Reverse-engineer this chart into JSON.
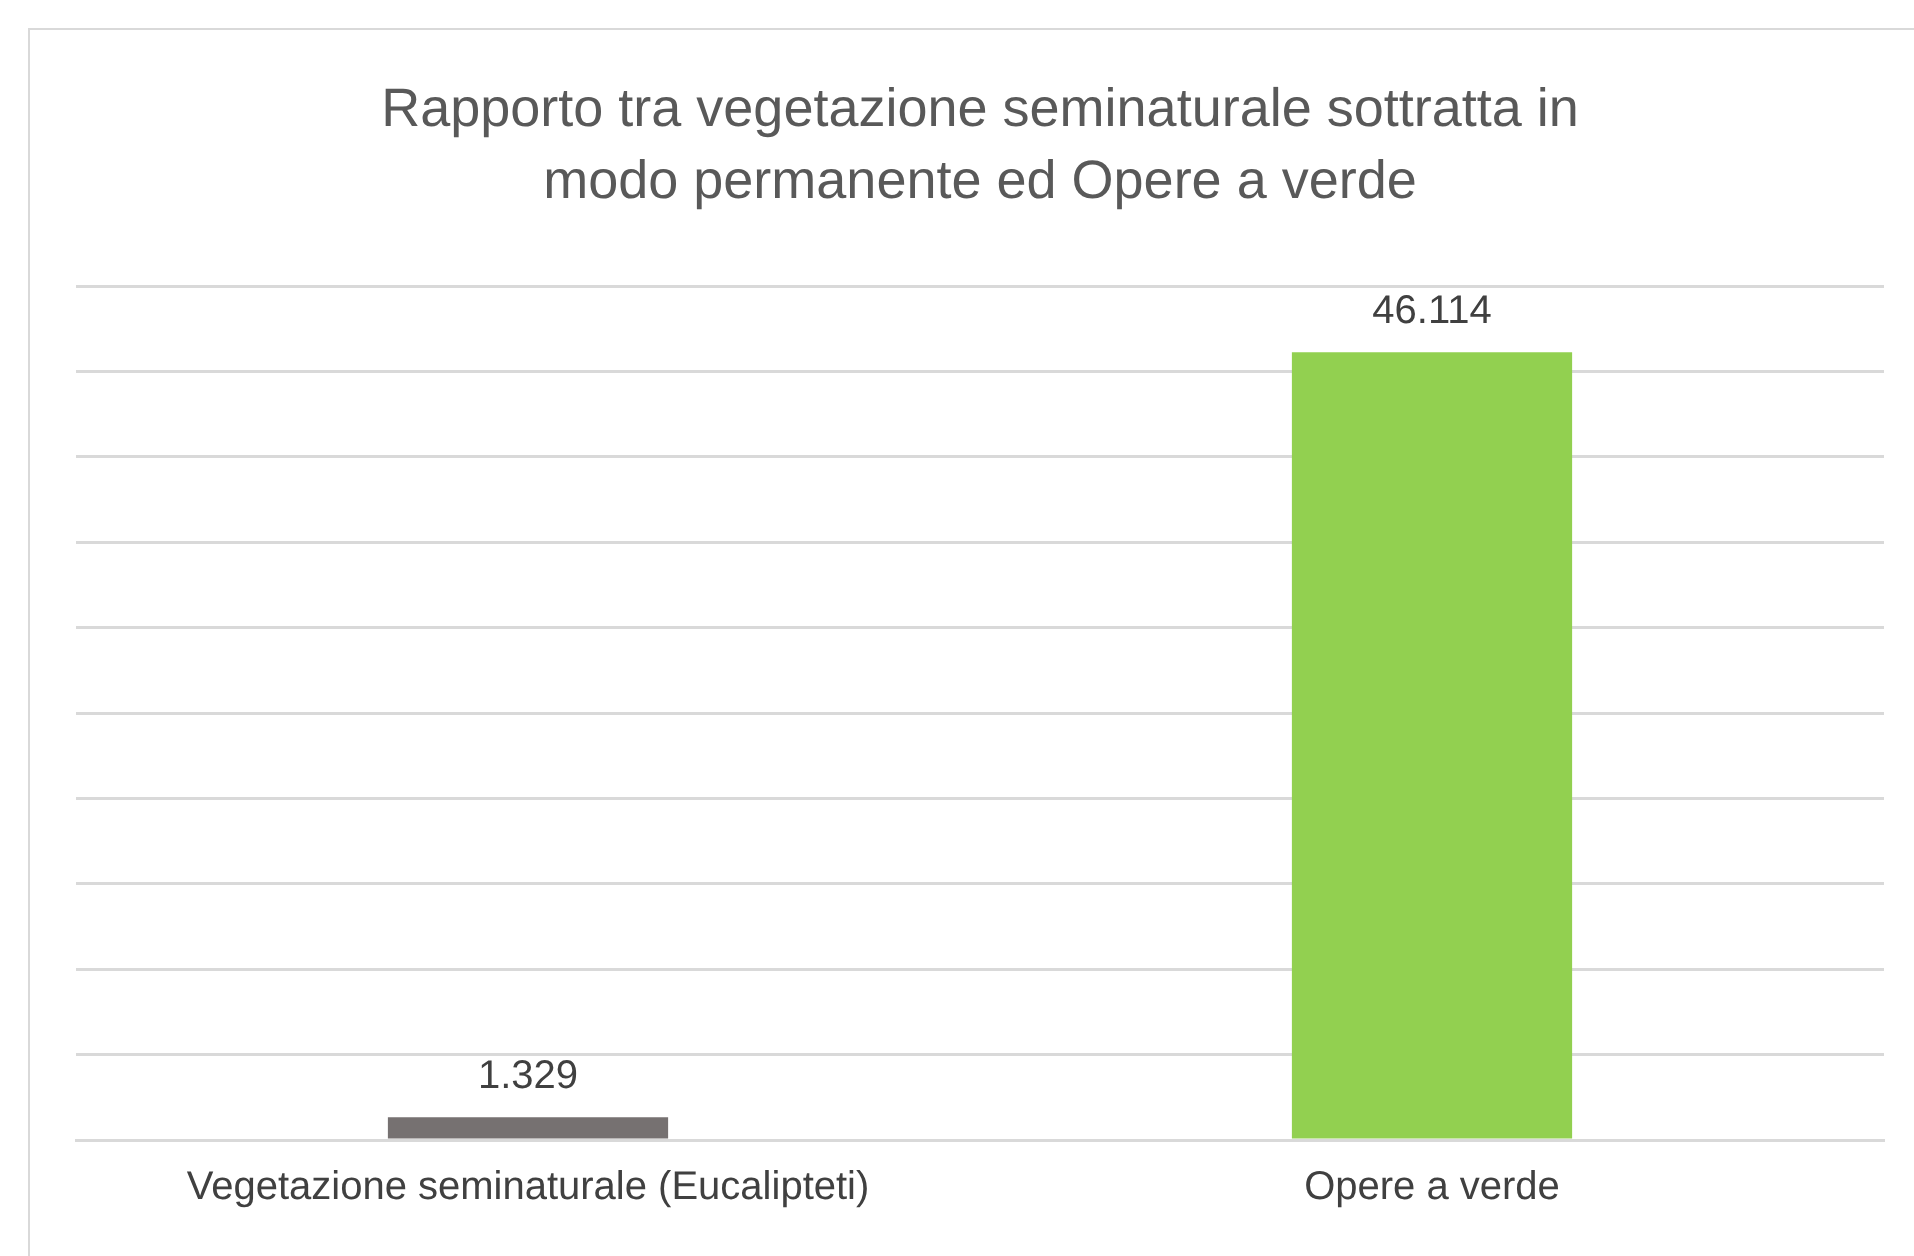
{
  "chart_data": {
    "type": "bar",
    "title": "Rapporto tra vegetazione seminaturale sottratta in modo permanente ed Opere a verde",
    "categories": [
      "Vegetazione seminaturale (Eucalipteti)",
      "Opere a verde"
    ],
    "values": [
      1.329,
      46.114
    ],
    "colors": [
      "#767171",
      "#92d050"
    ],
    "ylim": [
      0,
      50
    ],
    "yticks": [
      {
        "value": 0,
        "label": null
      },
      {
        "value": 5,
        "label": null
      },
      {
        "value": 10,
        "label": null
      },
      {
        "value": 15,
        "label": null
      },
      {
        "value": 20,
        "label": null
      },
      {
        "value": 25,
        "label": null
      },
      {
        "value": 30,
        "label": null
      },
      {
        "value": 35,
        "label": null
      },
      {
        "value": 40,
        "label": null
      },
      {
        "value": 45,
        "label": null
      },
      {
        "value": 50,
        "label": null
      }
    ],
    "tick_labels": "x",
    "grid": "y",
    "data_labels": true,
    "legend": false
  }
}
